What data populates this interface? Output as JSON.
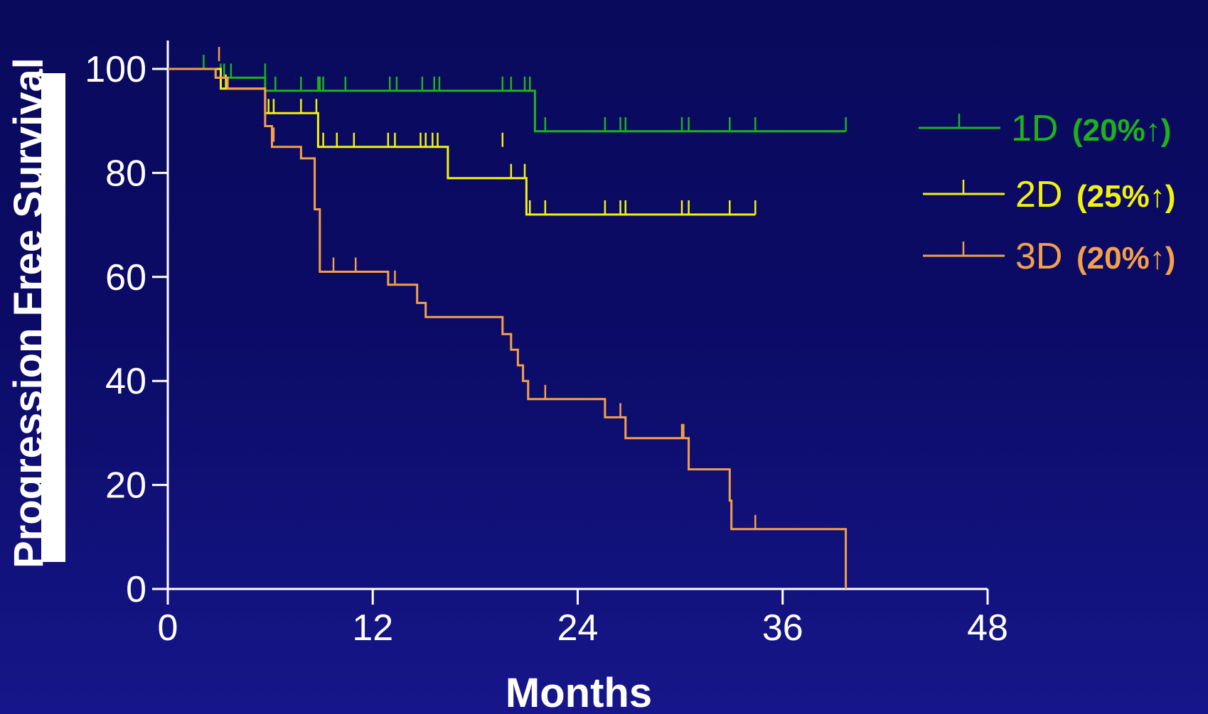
{
  "chart_data": {
    "type": "line",
    "title": "",
    "xlabel": "Months",
    "ylabel": "Progression Free Survival",
    "xlim": [
      0,
      48
    ],
    "ylim": [
      0,
      100
    ],
    "x_ticks": [
      "0",
      "12",
      "24",
      "36",
      "48"
    ],
    "y_ticks": [
      "0",
      "20",
      "40",
      "60",
      "80",
      "100"
    ],
    "grid": false,
    "legend_position": "right",
    "series": [
      {
        "name": "1D",
        "annotation": "(20%↑)",
        "color": "#1db21d",
        "steps": [
          [
            0,
            100
          ],
          [
            2.8,
            100
          ],
          [
            2.8,
            98.3
          ],
          [
            5.7,
            98.3
          ],
          [
            5.7,
            95.8
          ],
          [
            21.5,
            95.8
          ],
          [
            21.5,
            88
          ],
          [
            39.7,
            88
          ]
        ],
        "censored": [
          [
            2.1,
            100
          ],
          [
            3.1,
            98.3
          ],
          [
            3.3,
            98.3
          ],
          [
            3.7,
            98.3
          ],
          [
            5.7,
            98.3
          ],
          [
            6.3,
            95.8
          ],
          [
            7.8,
            95.8
          ],
          [
            8.8,
            95.8
          ],
          [
            8.9,
            95.8
          ],
          [
            9.1,
            95.8
          ],
          [
            10.4,
            95.8
          ],
          [
            13,
            95.8
          ],
          [
            13.4,
            95.8
          ],
          [
            14.9,
            95.8
          ],
          [
            15.6,
            95.8
          ],
          [
            15.9,
            95.8
          ],
          [
            19.6,
            95.8
          ],
          [
            20.1,
            95.8
          ],
          [
            20.9,
            95.8
          ],
          [
            21.2,
            95.8
          ],
          [
            22.1,
            88
          ],
          [
            25.6,
            88
          ],
          [
            26.5,
            88
          ],
          [
            26.8,
            88
          ],
          [
            30.1,
            88
          ],
          [
            30.5,
            88
          ],
          [
            32.9,
            88
          ],
          [
            34.4,
            88
          ],
          [
            39.7,
            88
          ]
        ]
      },
      {
        "name": "2D",
        "annotation": "(25%↑)",
        "color": "#f2f20f",
        "steps": [
          [
            0,
            100
          ],
          [
            3.1,
            100
          ],
          [
            3.1,
            96.2
          ],
          [
            5.7,
            96.2
          ],
          [
            5.7,
            91.5
          ],
          [
            8.8,
            91.5
          ],
          [
            8.8,
            85
          ],
          [
            16.4,
            85
          ],
          [
            16.4,
            79
          ],
          [
            21,
            79
          ],
          [
            21,
            72
          ],
          [
            34.4,
            72
          ]
        ],
        "censored": [
          [
            3.4,
            96.2
          ],
          [
            5.9,
            91.5
          ],
          [
            6.2,
            91.5
          ],
          [
            7.8,
            91.5
          ],
          [
            8.7,
            91.5
          ],
          [
            9.1,
            85
          ],
          [
            9.9,
            85
          ],
          [
            10.9,
            85
          ],
          [
            12.9,
            85
          ],
          [
            13.3,
            85
          ],
          [
            14.8,
            85
          ],
          [
            15.1,
            85
          ],
          [
            15.5,
            85
          ],
          [
            15.8,
            85
          ],
          [
            19.6,
            85
          ],
          [
            20.1,
            79
          ],
          [
            20.9,
            79
          ],
          [
            21.2,
            72
          ],
          [
            22.1,
            72
          ],
          [
            25.6,
            72
          ],
          [
            26.5,
            72
          ],
          [
            26.8,
            72
          ],
          [
            30.1,
            72
          ],
          [
            30.5,
            72
          ],
          [
            32.9,
            72
          ],
          [
            34.4,
            72
          ]
        ]
      },
      {
        "name": "3D",
        "annotation": "(20%↑)",
        "color": "#f4a04a",
        "steps": [
          [
            0,
            100
          ],
          [
            2.8,
            100
          ],
          [
            2.8,
            98.3
          ],
          [
            3.5,
            98.3
          ],
          [
            3.5,
            96.2
          ],
          [
            5.7,
            96.2
          ],
          [
            5.7,
            89
          ],
          [
            6.1,
            89
          ],
          [
            6.1,
            85
          ],
          [
            7.8,
            85
          ],
          [
            7.8,
            82.8
          ],
          [
            8.6,
            82.8
          ],
          [
            8.6,
            73
          ],
          [
            8.9,
            73
          ],
          [
            8.9,
            61
          ],
          [
            12.9,
            61
          ],
          [
            12.9,
            58.5
          ],
          [
            14.6,
            58.5
          ],
          [
            14.6,
            55
          ],
          [
            15.1,
            55
          ],
          [
            15.1,
            52.3
          ],
          [
            19.6,
            52.3
          ],
          [
            19.6,
            49
          ],
          [
            20.1,
            49
          ],
          [
            20.1,
            46
          ],
          [
            20.5,
            46
          ],
          [
            20.5,
            43
          ],
          [
            20.8,
            43
          ],
          [
            20.8,
            40
          ],
          [
            21.1,
            40
          ],
          [
            21.1,
            36.5
          ],
          [
            25.6,
            36.5
          ],
          [
            25.6,
            33
          ],
          [
            26.8,
            33
          ],
          [
            26.8,
            29
          ],
          [
            30.5,
            29
          ],
          [
            30.5,
            23
          ],
          [
            32.9,
            23
          ],
          [
            32.9,
            17
          ],
          [
            33,
            17
          ],
          [
            33,
            11.5
          ],
          [
            39.7,
            11.5
          ],
          [
            39.7,
            0
          ]
        ],
        "censored": [
          [
            3,
            101.5
          ],
          [
            6.2,
            86
          ],
          [
            9.7,
            61
          ],
          [
            11,
            61
          ],
          [
            13.3,
            58.5
          ],
          [
            22.1,
            36.5
          ],
          [
            26.5,
            33
          ],
          [
            30.1,
            29
          ],
          [
            30.2,
            29
          ],
          [
            34.4,
            11.5
          ]
        ]
      }
    ]
  }
}
